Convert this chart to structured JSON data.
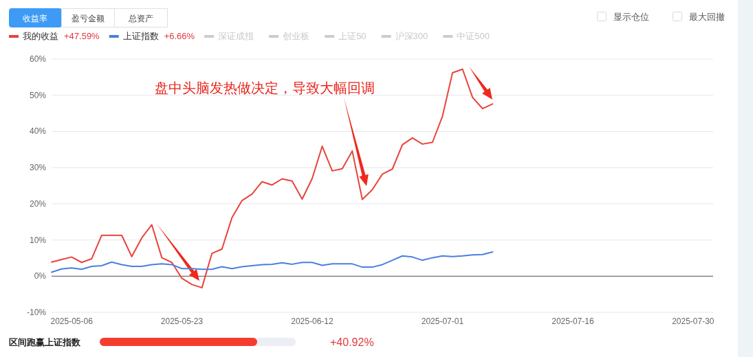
{
  "chart_data": {
    "type": "line",
    "categories": [
      null,
      null,
      "2025-05-06",
      null,
      null,
      null,
      null,
      null,
      null,
      null,
      null,
      null,
      null,
      "2025-05-23",
      null,
      null,
      null,
      null,
      null,
      null,
      null,
      null,
      null,
      null,
      null,
      null,
      "2025-06-12",
      null,
      null,
      null,
      null,
      null,
      null,
      null,
      null,
      null,
      null,
      null,
      null,
      "2025-07-01",
      null,
      null,
      null,
      null,
      null,
      null,
      null,
      null,
      null,
      null,
      null,
      null,
      "2025-07-16",
      null,
      null,
      null,
      null,
      null,
      null,
      null,
      null,
      null,
      null,
      null,
      "2025-07-30",
      null,
      null
    ],
    "series": [
      {
        "name": "我的收益",
        "color": "#e8433a",
        "values": [
          3.9,
          4.6,
          5.3,
          3.8,
          4.8,
          11.3,
          11.3,
          11.3,
          5.4,
          10.6,
          14.2,
          5.1,
          3.8,
          -0.6,
          -2.3,
          -3.2,
          6.3,
          7.5,
          16.2,
          20.9,
          22.7,
          26.1,
          25.2,
          26.9,
          26.3,
          21.3,
          27.0,
          35.9,
          29.1,
          29.7,
          34.6,
          21.2,
          23.9,
          28.2,
          29.6,
          36.3,
          38.2,
          36.5,
          37.0,
          44.2,
          56.2,
          57.2,
          49.4,
          46.3,
          47.6,
          null,
          null,
          null,
          null,
          null,
          null,
          null,
          null,
          null,
          null,
          null,
          null,
          null,
          null,
          null,
          null,
          null,
          null,
          null,
          null,
          null,
          null
        ]
      },
      {
        "name": "上证指数",
        "color": "#4a7fe0",
        "values": [
          1.1,
          2.0,
          2.3,
          1.9,
          2.7,
          2.9,
          3.9,
          3.2,
          2.7,
          2.7,
          3.2,
          3.4,
          3.2,
          2.1,
          2.1,
          1.9,
          1.9,
          2.6,
          2.1,
          2.6,
          2.9,
          3.2,
          3.3,
          3.7,
          3.3,
          3.8,
          3.8,
          3.0,
          3.4,
          3.4,
          3.4,
          2.5,
          2.5,
          3.2,
          4.4,
          5.6,
          5.3,
          4.4,
          5.1,
          5.6,
          5.4,
          5.6,
          5.9,
          6.0,
          6.7,
          null,
          null,
          null,
          null,
          null,
          null,
          null,
          null,
          null,
          null,
          null,
          null,
          null,
          null,
          null,
          null,
          null,
          null,
          null,
          null,
          null,
          null
        ]
      },
      {
        "name": "深证成指",
        "color": "#cccccc",
        "values": [
          null,
          null,
          null,
          null,
          null,
          null,
          null,
          null,
          null,
          null,
          null,
          null,
          null,
          null,
          null,
          null,
          null,
          null,
          null,
          null,
          null,
          null,
          null,
          null,
          null,
          null,
          null,
          null,
          null,
          null,
          null,
          null,
          null,
          null,
          null,
          null,
          null,
          null,
          null,
          null,
          null,
          null,
          null,
          null,
          null,
          null,
          null,
          null,
          null,
          null,
          null,
          null,
          null,
          null,
          null,
          null,
          null,
          null,
          null,
          null,
          null,
          null,
          null,
          null,
          null,
          null,
          null
        ]
      },
      {
        "name": "创业板",
        "color": "#cccccc",
        "values": [
          null,
          null,
          null,
          null,
          null,
          null,
          null,
          null,
          null,
          null,
          null,
          null,
          null,
          null,
          null,
          null,
          null,
          null,
          null,
          null,
          null,
          null,
          null,
          null,
          null,
          null,
          null,
          null,
          null,
          null,
          null,
          null,
          null,
          null,
          null,
          null,
          null,
          null,
          null,
          null,
          null,
          null,
          null,
          null,
          null,
          null,
          null,
          null,
          null,
          null,
          null,
          null,
          null,
          null,
          null,
          null,
          null,
          null,
          null,
          null,
          null,
          null,
          null,
          null,
          null,
          null,
          null
        ]
      },
      {
        "name": "上证50",
        "color": "#cccccc",
        "values": [
          null,
          null,
          null,
          null,
          null,
          null,
          null,
          null,
          null,
          null,
          null,
          null,
          null,
          null,
          null,
          null,
          null,
          null,
          null,
          null,
          null,
          null,
          null,
          null,
          null,
          null,
          null,
          null,
          null,
          null,
          null,
          null,
          null,
          null,
          null,
          null,
          null,
          null,
          null,
          null,
          null,
          null,
          null,
          null,
          null,
          null,
          null,
          null,
          null,
          null,
          null,
          null,
          null,
          null,
          null,
          null,
          null,
          null,
          null,
          null,
          null,
          null,
          null,
          null,
          null,
          null,
          null
        ]
      },
      {
        "name": "沪深300",
        "color": "#cccccc",
        "values": [
          null,
          null,
          null,
          null,
          null,
          null,
          null,
          null,
          null,
          null,
          null,
          null,
          null,
          null,
          null,
          null,
          null,
          null,
          null,
          null,
          null,
          null,
          null,
          null,
          null,
          null,
          null,
          null,
          null,
          null,
          null,
          null,
          null,
          null,
          null,
          null,
          null,
          null,
          null,
          null,
          null,
          null,
          null,
          null,
          null,
          null,
          null,
          null,
          null,
          null,
          null,
          null,
          null,
          null,
          null,
          null,
          null,
          null,
          null,
          null,
          null,
          null,
          null,
          null,
          null,
          null,
          null
        ]
      },
      {
        "name": "中证500",
        "color": "#cccccc",
        "values": [
          null,
          null,
          null,
          null,
          null,
          null,
          null,
          null,
          null,
          null,
          null,
          null,
          null,
          null,
          null,
          null,
          null,
          null,
          null,
          null,
          null,
          null,
          null,
          null,
          null,
          null,
          null,
          null,
          null,
          null,
          null,
          null,
          null,
          null,
          null,
          null,
          null,
          null,
          null,
          null,
          null,
          null,
          null,
          null,
          null,
          null,
          null,
          null,
          null,
          null,
          null,
          null,
          null,
          null,
          null,
          null,
          null,
          null,
          null,
          null,
          null,
          null,
          null,
          null,
          null,
          null,
          null
        ]
      }
    ],
    "ylim": [
      -10,
      60
    ],
    "yticks": [
      {
        "value": -10,
        "label": "-10%"
      },
      {
        "value": 0,
        "label": "0%"
      },
      {
        "value": 10,
        "label": "10%"
      },
      {
        "value": 20,
        "label": "20%"
      },
      {
        "value": 30,
        "label": "30%"
      },
      {
        "value": 40,
        "label": "40%"
      },
      {
        "value": 50,
        "label": "50%"
      },
      {
        "value": 60,
        "label": "60%"
      }
    ],
    "grid": "y",
    "legend": "top left",
    "annotations": [
      "收益率",
      "盈亏金额",
      "总资产",
      "显示仓位",
      "最大回撤",
      "+47.59%",
      "+6.66%",
      "盘中头脑发热做决定，导致大幅回调",
      "区间跑赢上证指数",
      "+40.92%"
    ]
  }
}
